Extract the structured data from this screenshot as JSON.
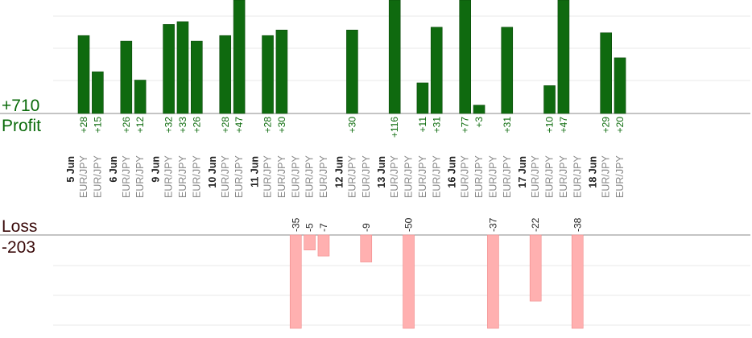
{
  "profit_summary": {
    "total": "+710",
    "label": "Profit"
  },
  "loss_summary": {
    "total": "-203",
    "label": "Loss"
  },
  "colors": {
    "profit": "#0f6a0f",
    "loss": "#ffb0b0",
    "profit_text": "#0a6a0a",
    "loss_text": "#3a0a0a"
  },
  "chart_data": {
    "type": "bar",
    "series": [
      {
        "name": "Profit",
        "axis": "top"
      },
      {
        "name": "Loss",
        "axis": "bottom"
      }
    ],
    "days": [
      {
        "date": "5 Jun",
        "trades": [
          {
            "symbol": "EUR/JPY",
            "value": 28,
            "label": "+28"
          },
          {
            "symbol": "EUR/JPY",
            "value": 15,
            "label": "+15"
          }
        ]
      },
      {
        "date": "6 Jun",
        "trades": [
          {
            "symbol": "EUR/JPY",
            "value": 26,
            "label": "+26"
          },
          {
            "symbol": "EUR/JPY",
            "value": 12,
            "label": "+12"
          }
        ]
      },
      {
        "date": "9 Jun",
        "trades": [
          {
            "symbol": "EUR/JPY",
            "value": 32,
            "label": "+32"
          },
          {
            "symbol": "EUR/JPY",
            "value": 33,
            "label": "+33"
          },
          {
            "symbol": "EUR/JPY",
            "value": 26,
            "label": "+26"
          }
        ]
      },
      {
        "date": "10 Jun",
        "trades": [
          {
            "symbol": "EUR/JPY",
            "value": 28,
            "label": "+28"
          },
          {
            "symbol": "EUR/JPY",
            "value": 47,
            "label": "+47"
          }
        ]
      },
      {
        "date": "11 Jun",
        "trades": [
          {
            "symbol": "EUR/JPY",
            "value": 28,
            "label": "+28"
          },
          {
            "symbol": "EUR/JPY",
            "value": 30,
            "label": "+30"
          },
          {
            "symbol": "EUR/JPY",
            "value": -35,
            "label": "-35"
          },
          {
            "symbol": "EUR/JPY",
            "value": -5,
            "label": "-5"
          },
          {
            "symbol": "EUR/JPY",
            "value": -7,
            "label": "-7"
          }
        ]
      },
      {
        "date": "12 Jun",
        "trades": [
          {
            "symbol": "EUR/JPY",
            "value": 30,
            "label": "+30"
          },
          {
            "symbol": "EUR/JPY",
            "value": -9,
            "label": "-9"
          }
        ]
      },
      {
        "date": "13 Jun",
        "trades": [
          {
            "symbol": "EUR/JPY",
            "value": 116,
            "label": "+116"
          },
          {
            "symbol": "EUR/JPY",
            "value": -50,
            "label": "-50"
          },
          {
            "symbol": "EUR/JPY",
            "value": 11,
            "label": "+11"
          },
          {
            "symbol": "EUR/JPY",
            "value": 31,
            "label": "+31"
          }
        ]
      },
      {
        "date": "16 Jun",
        "trades": [
          {
            "symbol": "EUR/JPY",
            "value": 77,
            "label": "+77"
          },
          {
            "symbol": "EUR/JPY",
            "value": 3,
            "label": "+3"
          },
          {
            "symbol": "EUR/JPY",
            "value": -37,
            "label": "-37"
          },
          {
            "symbol": "EUR/JPY",
            "value": 31,
            "label": "+31"
          }
        ]
      },
      {
        "date": "17 Jun",
        "trades": [
          {
            "symbol": "EUR/JPY",
            "value": -22,
            "label": "-22"
          },
          {
            "symbol": "EUR/JPY",
            "value": 10,
            "label": "+10"
          },
          {
            "symbol": "EUR/JPY",
            "value": 47,
            "label": "+47"
          },
          {
            "symbol": "EUR/JPY",
            "value": -38,
            "label": "-38"
          }
        ]
      },
      {
        "date": "18 Jun",
        "trades": [
          {
            "symbol": "EUR/JPY",
            "value": 29,
            "label": "+29"
          },
          {
            "symbol": "EUR/JPY",
            "value": 20,
            "label": "+20"
          }
        ]
      }
    ],
    "profit_ylim": [
      0,
      35
    ],
    "loss_ylim": [
      0,
      30
    ],
    "grid": true,
    "legend": "none"
  }
}
